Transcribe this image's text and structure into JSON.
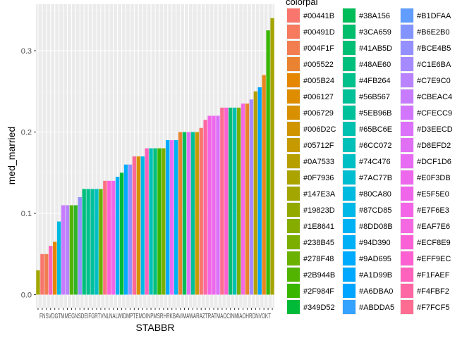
{
  "chart_data": {
    "type": "bar",
    "xlabel": "STABBR",
    "ylabel": "med_married",
    "ylim": [
      0,
      0.355
    ],
    "y_ticks": [
      "0.0",
      "0.1",
      "0.2",
      "0.3"
    ],
    "y_tick_values": [
      0,
      0.1,
      0.2,
      0.3
    ],
    "x_tick_text": "FNSVDGTMMEGNSDEIFGRTVNLNALWIDMPTEMOINPMSRHRKBAVIMAWARAZTRATMAOCINMIAOHRDNVOKT",
    "values": [
      0.03,
      0.05,
      0.05,
      0.06,
      0.065,
      0.09,
      0.11,
      0.11,
      0.11,
      0.11,
      0.12,
      0.13,
      0.13,
      0.13,
      0.13,
      0.13,
      0.14,
      0.14,
      0.14,
      0.145,
      0.15,
      0.16,
      0.16,
      0.17,
      0.17,
      0.17,
      0.18,
      0.18,
      0.18,
      0.18,
      0.18,
      0.19,
      0.19,
      0.19,
      0.2,
      0.2,
      0.2,
      0.2,
      0.2,
      0.205,
      0.215,
      0.22,
      0.22,
      0.22,
      0.23,
      0.23,
      0.23,
      0.23,
      0.23,
      0.235,
      0.235,
      0.24,
      0.25,
      0.255,
      0.27,
      0.325,
      0.34
    ],
    "bar_fills": [
      "#A3A500",
      "#F8766D",
      "#F17D50",
      "#FF63B6",
      "#E58700",
      "#00BAE0",
      "#C77CFF",
      "#B983FF",
      "#53B400",
      "#31B425",
      "#9590FF",
      "#00BF7D",
      "#00C08B",
      "#00C19A",
      "#00BFC4",
      "#6BB100",
      "#FC717F",
      "#FB61D7",
      "#F066EA",
      "#00B0F6",
      "#00BA38",
      "#00ABFD",
      "#9590FF",
      "#FF6A98",
      "#D89000",
      "#00B8E7",
      "#FF62BC",
      "#00C0B8",
      "#00BF7D",
      "#39B600",
      "#7CAE00",
      "#00A9FF",
      "#E76BF3",
      "#00B2F3",
      "#EA8331",
      "#00BC59",
      "#E16FF3",
      "#00C097",
      "#C49A00",
      "#F8766D",
      "#FF67A4",
      "#F365E6",
      "#ED68ED",
      "#DC71FA",
      "#FF6C91",
      "#FD61D1",
      "#00BF74",
      "#00C0AF",
      "#7CAE00",
      "#F469E1",
      "#E9842C",
      "#A68AFF",
      "#B79F00",
      "#00A5FF",
      "#E7861B",
      "#39B600",
      "#A3A500"
    ],
    "legend_title": "colorpal",
    "legend": [
      {
        "label": "#00441B",
        "color": "#F8766D"
      },
      {
        "label": "#00491D",
        "color": "#F67A5E"
      },
      {
        "label": "#004F1F",
        "color": "#F17D50"
      },
      {
        "label": "#005522",
        "color": "#EA8331"
      },
      {
        "label": "#005B24",
        "color": "#E58700"
      },
      {
        "label": "#006127",
        "color": "#DE8C00"
      },
      {
        "label": "#006729",
        "color": "#D89000"
      },
      {
        "label": "#006D2C",
        "color": "#CF9400"
      },
      {
        "label": "#05712F",
        "color": "#C49A00"
      },
      {
        "label": "#0A7533",
        "color": "#B79F00"
      },
      {
        "label": "#0F7936",
        "color": "#ABA300"
      },
      {
        "label": "#147E3A",
        "color": "#A3A500"
      },
      {
        "label": "#19823D",
        "color": "#93A900"
      },
      {
        "label": "#1E8641",
        "color": "#86AC00"
      },
      {
        "label": "#238B45",
        "color": "#7CAE00"
      },
      {
        "label": "#278F48",
        "color": "#6BB100"
      },
      {
        "label": "#2B944B",
        "color": "#53B400"
      },
      {
        "label": "#2F984F",
        "color": "#39B600"
      },
      {
        "label": "#349D52",
        "color": "#00BA38"
      },
      {
        "label": "#38A156",
        "color": "#00BC59"
      },
      {
        "label": "#3CA659",
        "color": "#00BE6C"
      },
      {
        "label": "#41AB5D",
        "color": "#00BF74"
      },
      {
        "label": "#48AE60",
        "color": "#00BF7D"
      },
      {
        "label": "#4FB264",
        "color": "#00C08B"
      },
      {
        "label": "#56B567",
        "color": "#00C097"
      },
      {
        "label": "#5EB96B",
        "color": "#00C19A"
      },
      {
        "label": "#65BC6E",
        "color": "#00C0AF"
      },
      {
        "label": "#6CC072",
        "color": "#00C0B8"
      },
      {
        "label": "#74C476",
        "color": "#00BFC4"
      },
      {
        "label": "#7AC77B",
        "color": "#00BDD0"
      },
      {
        "label": "#80CA80",
        "color": "#00BAE0"
      },
      {
        "label": "#87CD85",
        "color": "#00B8E7"
      },
      {
        "label": "#8DD08B",
        "color": "#00B2F3"
      },
      {
        "label": "#94D390",
        "color": "#00B0F6"
      },
      {
        "label": "#9AD695",
        "color": "#00ABFD"
      },
      {
        "label": "#A1D99B",
        "color": "#00A9FF"
      },
      {
        "label": "#A6DBA0",
        "color": "#00A5FF"
      },
      {
        "label": "#ABDDA5",
        "color": "#35A2FF"
      },
      {
        "label": "#B1DFAA",
        "color": "#619CFF"
      },
      {
        "label": "#B6E2B0",
        "color": "#8494FF"
      },
      {
        "label": "#BCE4B5",
        "color": "#9590FF"
      },
      {
        "label": "#C1E6BA",
        "color": "#A68AFF"
      },
      {
        "label": "#C7E9C0",
        "color": "#B983FF"
      },
      {
        "label": "#CBEAC4",
        "color": "#C77CFF"
      },
      {
        "label": "#CFECC9",
        "color": "#D277FD"
      },
      {
        "label": "#D3EECD",
        "color": "#DC71FA"
      },
      {
        "label": "#D8EFD2",
        "color": "#E16FF3"
      },
      {
        "label": "#DCF1D6",
        "color": "#E76BF3"
      },
      {
        "label": "#E0F3DB",
        "color": "#ED68ED"
      },
      {
        "label": "#E5F5E0",
        "color": "#F066EA"
      },
      {
        "label": "#E7F6E3",
        "color": "#F365E6"
      },
      {
        "label": "#EAF7E6",
        "color": "#F469E1"
      },
      {
        "label": "#ECF8E9",
        "color": "#FB61D7"
      },
      {
        "label": "#EFF9EC",
        "color": "#FD61D1"
      },
      {
        "label": "#F1FAEF",
        "color": "#FF62BC"
      },
      {
        "label": "#F4FBF2",
        "color": "#FF67A4"
      },
      {
        "label": "#F7FCF5",
        "color": "#FF6C91"
      }
    ],
    "colors": {
      "panel": "#EBEBEB",
      "grid_major": "#FFFFFF",
      "grid_minor": "#F5F5F5"
    }
  }
}
